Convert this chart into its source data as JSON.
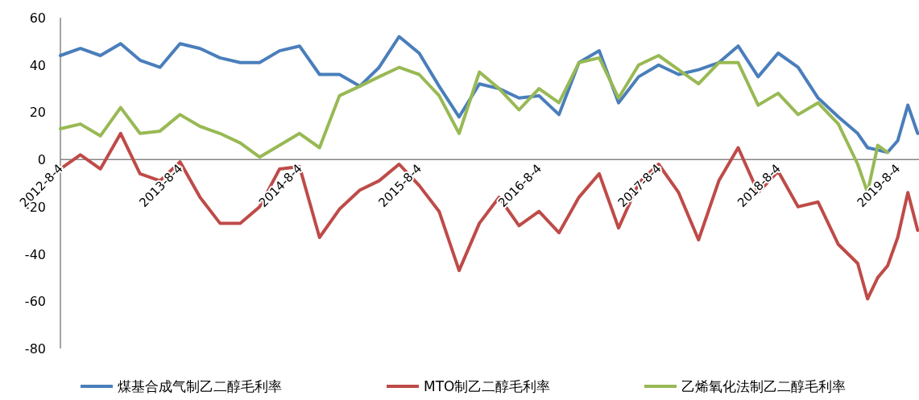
{
  "chart_data": {
    "type": "line",
    "x": [
      "2012-08-04",
      "2012-10-04",
      "2012-12-04",
      "2013-02-04",
      "2013-04-04",
      "2013-06-04",
      "2013-08-04",
      "2013-10-04",
      "2013-12-04",
      "2014-02-04",
      "2014-04-04",
      "2014-06-04",
      "2014-08-04",
      "2014-10-04",
      "2014-12-04",
      "2015-02-04",
      "2015-04-04",
      "2015-06-04",
      "2015-08-04",
      "2015-10-04",
      "2015-12-04",
      "2016-02-04",
      "2016-04-04",
      "2016-06-04",
      "2016-08-04",
      "2016-10-04",
      "2016-12-04",
      "2017-02-04",
      "2017-04-04",
      "2017-06-04",
      "2017-08-04",
      "2017-10-04",
      "2017-12-04",
      "2018-02-04",
      "2018-04-04",
      "2018-06-04",
      "2018-08-04",
      "2018-10-04",
      "2018-12-04",
      "2019-02-04",
      "2019-04-04",
      "2019-05-04",
      "2019-06-04",
      "2019-07-04",
      "2019-08-04",
      "2019-09-04",
      "2019-10-04"
    ],
    "series": [
      {
        "name": "煤基合成气制乙二醇毛利率",
        "color": "#4a7ebb",
        "values": [
          44,
          47,
          44,
          49,
          42,
          39,
          49,
          47,
          43,
          41,
          41,
          46,
          48,
          36,
          36,
          31,
          39,
          52,
          45,
          31,
          18,
          32,
          30,
          26,
          27,
          19,
          41,
          46,
          24,
          35,
          40,
          36,
          38,
          41,
          48,
          35,
          45,
          39,
          26,
          18,
          11,
          5,
          4,
          3,
          8,
          23,
          11
        ]
      },
      {
        "name": "MTO制乙二醇毛利率",
        "color": "#be4b48",
        "values": [
          -4,
          2,
          -4,
          11,
          -6,
          -9,
          -1,
          -16,
          -27,
          -27,
          -20,
          -4,
          -3,
          -33,
          -21,
          -13,
          -9,
          -2,
          -11,
          -22,
          -47,
          -27,
          -16,
          -28,
          -22,
          -31,
          -16,
          -6,
          -29,
          -10,
          -2,
          -14,
          -34,
          -9,
          5,
          -14,
          -5,
          -20,
          -18,
          -36,
          -44,
          -59,
          -50,
          -45,
          -33,
          -14,
          -30
        ]
      },
      {
        "name": "乙烯氧化法制乙二醇毛利率",
        "color": "#98b954",
        "values": [
          13,
          15,
          10,
          22,
          11,
          12,
          19,
          14,
          11,
          7,
          1,
          6,
          11,
          5,
          27,
          31,
          35,
          39,
          36,
          27,
          11,
          37,
          30,
          21,
          30,
          24,
          41,
          43,
          26,
          40,
          44,
          38,
          32,
          41,
          41,
          23,
          28,
          19,
          24,
          15,
          -2,
          -14,
          6,
          3,
          null,
          null,
          null
        ]
      }
    ],
    "xlim": [
      "2012-08-04",
      "2019-10-08"
    ],
    "xticks": [
      {
        "value": "2012-08-04",
        "label": "2012-8-4"
      },
      {
        "value": "2013-08-04",
        "label": "2013-8-4"
      },
      {
        "value": "2014-08-04",
        "label": "2014-8-4"
      },
      {
        "value": "2015-08-04",
        "label": "2015-8-4"
      },
      {
        "value": "2016-08-04",
        "label": "2016-8-4"
      },
      {
        "value": "2017-08-04",
        "label": "2017-8-4"
      },
      {
        "value": "2018-08-04",
        "label": "2018-8-4"
      },
      {
        "value": "2019-08-04",
        "label": "2019-8-4"
      }
    ],
    "ylim": [
      -80,
      60
    ],
    "yticks": [
      -80,
      -60,
      -40,
      -20,
      0,
      20,
      40,
      60
    ],
    "grid": false,
    "legend": "bottom",
    "line_style": "solid",
    "marker": "none"
  }
}
